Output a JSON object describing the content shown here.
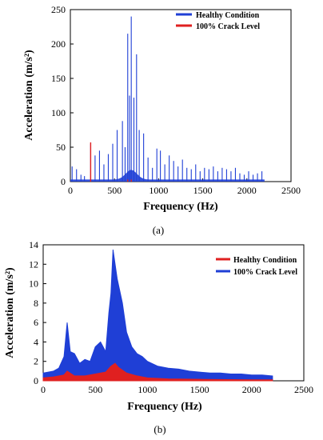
{
  "colors": {
    "blue": "#1f3fd6",
    "red": "#e02020"
  },
  "chart_data": [
    {
      "type": "line",
      "caption": "(a)",
      "xlabel": "Frequency (Hz)",
      "ylabel": "Acceleration (m/s²)",
      "xlim": [
        0,
        2500
      ],
      "ylim": [
        0,
        250
      ],
      "xticks": [
        0,
        500,
        1000,
        1500,
        2000,
        2500
      ],
      "yticks": [
        0,
        50,
        100,
        150,
        200,
        250
      ],
      "legend_position": "top-right",
      "series": [
        {
          "name": "Healthy Condition",
          "color": "#1f3fd6",
          "style": "spectrum-peaks",
          "x": [
            20,
            70,
            120,
            160,
            230,
            280,
            330,
            380,
            430,
            480,
            530,
            590,
            620,
            650,
            670,
            690,
            720,
            750,
            780,
            830,
            880,
            930,
            980,
            1020,
            1070,
            1120,
            1170,
            1220,
            1270,
            1320,
            1370,
            1420,
            1470,
            1520,
            1570,
            1620,
            1670,
            1720,
            1770,
            1820,
            1870,
            1920,
            1970,
            2020,
            2070,
            2120,
            2170
          ],
          "y": [
            22,
            18,
            10,
            8,
            55,
            38,
            45,
            25,
            40,
            55,
            75,
            88,
            50,
            215,
            125,
            240,
            122,
            185,
            75,
            70,
            35,
            20,
            48,
            45,
            25,
            38,
            30,
            22,
            32,
            20,
            18,
            25,
            15,
            20,
            18,
            22,
            15,
            20,
            18,
            15,
            20,
            12,
            10,
            15,
            10,
            12,
            15
          ]
        },
        {
          "name": "100% Crack Level",
          "color": "#e02020",
          "style": "spectrum-peaks",
          "x": [
            230,
            650,
            690
          ],
          "y": [
            57,
            3,
            3
          ]
        }
      ]
    },
    {
      "type": "area",
      "caption": "(b)",
      "xlabel": "Frequency (Hz)",
      "ylabel": "Acceleration (m/s²)",
      "xlim": [
        0,
        2500
      ],
      "ylim": [
        0,
        14
      ],
      "xticks": [
        0,
        500,
        1000,
        1500,
        2000,
        2500
      ],
      "yticks": [
        0,
        2,
        4,
        6,
        8,
        10,
        12,
        14
      ],
      "legend_position": "top-right",
      "series": [
        {
          "name": "Healthy Condition",
          "color": "#e02020",
          "x": [
            0,
            100,
            200,
            230,
            300,
            400,
            500,
            600,
            650,
            690,
            720,
            800,
            900,
            1000,
            1200,
            1500,
            2000,
            2200
          ],
          "y": [
            0.3,
            0.4,
            0.6,
            1.0,
            0.5,
            0.5,
            0.7,
            0.9,
            1.5,
            1.8,
            1.4,
            0.8,
            0.5,
            0.3,
            0.2,
            0.15,
            0.1,
            0.1
          ]
        },
        {
          "name": "100% Crack Level",
          "color": "#1f3fd6",
          "x": [
            0,
            50,
            100,
            150,
            200,
            230,
            260,
            300,
            350,
            400,
            450,
            500,
            550,
            600,
            630,
            650,
            670,
            690,
            710,
            730,
            760,
            800,
            850,
            900,
            950,
            1000,
            1100,
            1200,
            1300,
            1400,
            1500,
            1600,
            1700,
            1800,
            1900,
            2000,
            2100,
            2200
          ],
          "y": [
            0.8,
            0.9,
            1.0,
            1.3,
            2.5,
            6.0,
            3.0,
            2.8,
            1.8,
            2.2,
            2.0,
            3.5,
            4.0,
            3.0,
            7.0,
            9.0,
            13.5,
            12.0,
            10.5,
            9.5,
            8.0,
            5.0,
            3.5,
            2.8,
            2.5,
            2.0,
            1.5,
            1.3,
            1.2,
            1.0,
            0.9,
            0.8,
            0.8,
            0.7,
            0.7,
            0.6,
            0.6,
            0.5
          ]
        }
      ]
    }
  ]
}
